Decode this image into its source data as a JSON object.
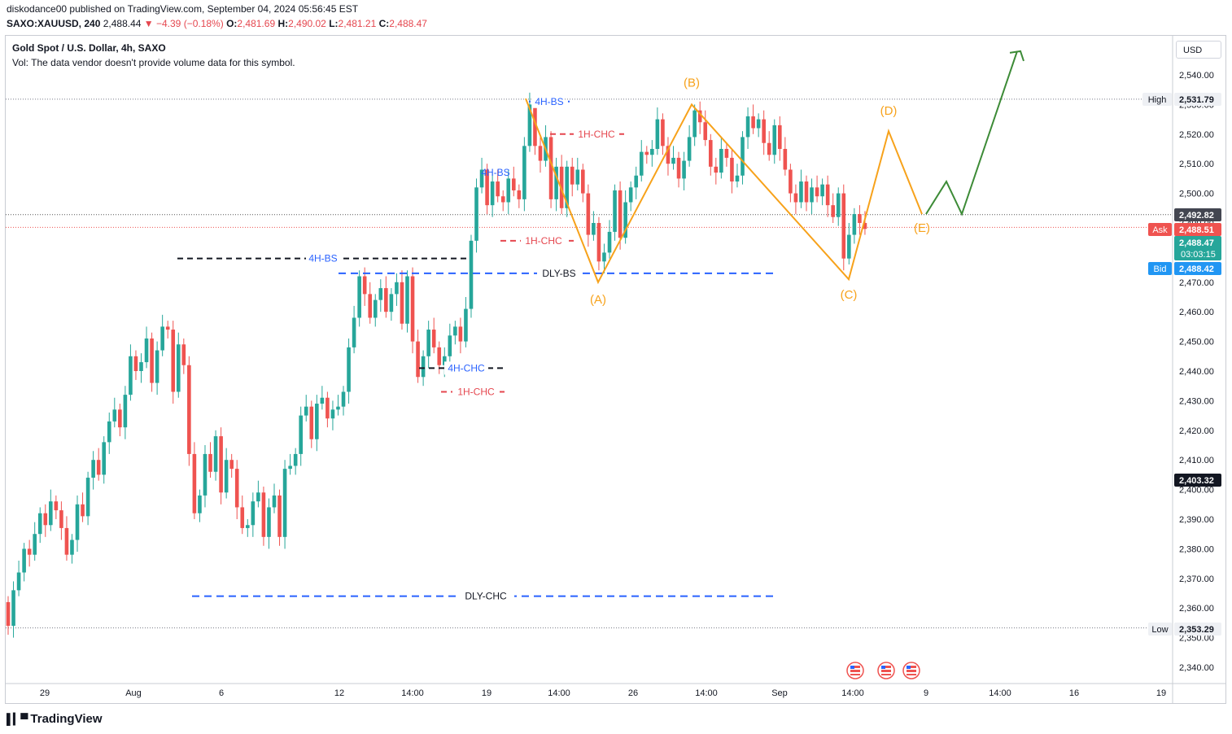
{
  "header": {
    "publish_line": "diskodance00 published on TradingView.com, September 04, 2024 05:56:45 EST",
    "symbol": "SAXO:XAUUSD, 240",
    "last": "2,488.44",
    "change": "▼ −4.39 (−0.18%)",
    "open_label": "O:",
    "open": "2,481.69",
    "high_label": "H:",
    "high": "2,490.02",
    "low_label": "L:",
    "low": "2,481.21",
    "close_label": "C:",
    "close": "2,488.47"
  },
  "legend": {
    "title": "Gold Spot / U.S. Dollar, 4h, SAXO",
    "vol": "Vol: The data vendor doesn't provide volume data for this symbol."
  },
  "currency_button": "USD",
  "brand": {
    "logo": "▌▎▀",
    "name": "TradingView"
  },
  "colors": {
    "up": "#26a69a",
    "down": "#ef5350",
    "wave": "#f7a21b",
    "projection": "#3d8b37",
    "blue_level": "#2962ff",
    "red_level": "#e5474f"
  },
  "chart_data": {
    "type": "candlestick",
    "title": "Gold Spot / U.S. Dollar, 4h, SAXO",
    "price_axis": {
      "ticks": [
        "2,540.00",
        "2,530.00",
        "2,520.00",
        "2,510.00",
        "2,500.00",
        "2,490.00",
        "2,480.00",
        "2,470.00",
        "2,460.00",
        "2,450.00",
        "2,440.00",
        "2,430.00",
        "2,420.00",
        "2,410.00",
        "2,400.00",
        "2,390.00",
        "2,380.00",
        "2,370.00",
        "2,360.00",
        "2,350.00",
        "2,340.00"
      ],
      "ylim": [
        2337,
        2552
      ]
    },
    "time_axis": {
      "ticks": [
        "29",
        "Aug",
        "6",
        "12",
        "14:00",
        "19",
        "14:00",
        "26",
        "14:00",
        "Sep",
        "14:00",
        "9",
        "14:00",
        "16",
        "19"
      ]
    },
    "price_labels": [
      {
        "tag": "High",
        "value": "2,531.79"
      },
      {
        "tag": "",
        "value": "2,492.82"
      },
      {
        "tag": "Ask",
        "value": "2,488.51"
      },
      {
        "tag": "",
        "value": "2,488.47",
        "sub": "03:03:15"
      },
      {
        "tag": "Bid",
        "value": "2,488.42"
      },
      {
        "tag": "",
        "value": "2,403.32"
      },
      {
        "tag": "Low",
        "value": "2,353.29"
      }
    ],
    "closes": [
      2354,
      2366,
      2372,
      2380,
      2378,
      2385,
      2392,
      2388,
      2396,
      2393,
      2387,
      2378,
      2383,
      2395,
      2391,
      2404,
      2410,
      2405,
      2416,
      2423,
      2427,
      2421,
      2432,
      2445,
      2440,
      2443,
      2451,
      2436,
      2447,
      2455,
      2454,
      2433,
      2449,
      2442,
      2412,
      2392,
      2398,
      2412,
      2406,
      2418,
      2399,
      2410,
      2407,
      2394,
      2387,
      2388,
      2396,
      2399,
      2384,
      2394,
      2398,
      2384,
      2407,
      2408,
      2412,
      2425,
      2428,
      2417,
      2429,
      2431,
      2424,
      2427,
      2428,
      2433,
      2448,
      2458,
      2472,
      2466,
      2458,
      2464,
      2468,
      2460,
      2466,
      2470,
      2456,
      2472,
      2450,
      2438,
      2445,
      2454,
      2448,
      2442,
      2445,
      2452,
      2455,
      2450,
      2461,
      2484,
      2502,
      2508,
      2496,
      2504,
      2499,
      2497,
      2505,
      2501,
      2498,
      2516,
      2530,
      2516,
      2511,
      2519,
      2498,
      2509,
      2495,
      2509,
      2503,
      2508,
      2500,
      2486,
      2490,
      2477,
      2480,
      2487,
      2501,
      2485,
      2497,
      2502,
      2506,
      2514,
      2513,
      2515,
      2525,
      2516,
      2510,
      2512,
      2505,
      2511,
      2519,
      2528,
      2524,
      2518,
      2509,
      2507,
      2515,
      2512,
      2504,
      2506,
      2519,
      2526,
      2522,
      2525,
      2517,
      2513,
      2523,
      2515,
      2508,
      2500,
      2497,
      2504,
      2497,
      2502,
      2499,
      2503,
      2496,
      2492,
      2500,
      2478,
      2486,
      2493,
      2490,
      2488
    ],
    "levels": [
      {
        "label": "4H-BS",
        "price": 2478,
        "style": "black-dash"
      },
      {
        "label": "DLY-BS",
        "price": 2473,
        "style": "blue-dash"
      },
      {
        "label": "4H-CHC",
        "price": 2441,
        "style": "black-dash"
      },
      {
        "label": "1H-CHC",
        "price": 2433,
        "style": "red-dash"
      },
      {
        "label": "1H-CHC",
        "price": 2484,
        "style": "red-dash"
      },
      {
        "label": "1H-CHC",
        "price": 2520,
        "style": "red-dash"
      },
      {
        "label": "4H-BS",
        "price": 2507,
        "style": "blue-text"
      },
      {
        "label": "4H-BS",
        "price": 2531,
        "style": "blue-dot"
      },
      {
        "label": "DLY-CHC",
        "price": 2364,
        "style": "blue-dash"
      }
    ],
    "wave_points": [
      {
        "label": "",
        "price": 2532
      },
      {
        "label": "(A)",
        "price": 2470
      },
      {
        "label": "(B)",
        "price": 2530
      },
      {
        "label": "(C)",
        "price": 2471
      },
      {
        "label": "(D)",
        "price": 2521
      },
      {
        "label": "(E)",
        "price": 2493
      }
    ],
    "projection_prices": [
      2493,
      2504,
      2493,
      2548
    ],
    "ref_lines": {
      "high": 2531.79,
      "last": 2492.82,
      "ask": 2488.51,
      "low": 2353.29
    }
  }
}
